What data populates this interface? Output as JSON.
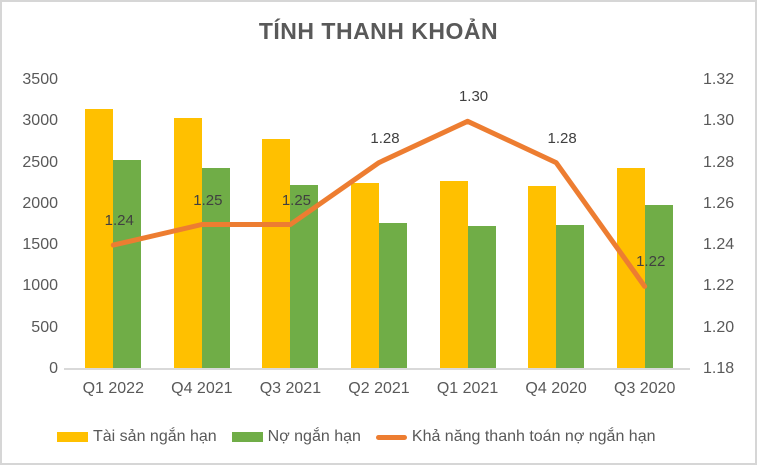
{
  "title": "TÍNH THANH KHOẢN",
  "chart_data": {
    "type": "combo-bar-line",
    "title": "TÍNH THANH KHOẢN",
    "categories": [
      "Q1 2022",
      "Q4 2021",
      "Q3 2021",
      "Q2 2021",
      "Q1 2021",
      "Q4 2020",
      "Q3 2020"
    ],
    "series": [
      {
        "name": "Tài sản ngắn hạn",
        "type": "bar",
        "axis": "left",
        "color": "#FFC000",
        "values": [
          3150,
          3040,
          2790,
          2250,
          2280,
          2220,
          2430
        ]
      },
      {
        "name": "Nợ ngắn hạn",
        "type": "bar",
        "axis": "left",
        "color": "#70AD47",
        "values": [
          2530,
          2430,
          2230,
          1770,
          1730,
          1740,
          1990
        ]
      },
      {
        "name": "Khả năng thanh toán nợ ngắn hạn",
        "type": "line",
        "axis": "right",
        "color": "#ED7D31",
        "values": [
          1.24,
          1.25,
          1.25,
          1.28,
          1.3,
          1.28,
          1.22
        ],
        "data_labels": [
          "1.24",
          "1.25",
          "1.25",
          "1.28",
          "1.30",
          "1.28",
          "1.22"
        ]
      }
    ],
    "left_axis": {
      "min": 0,
      "max": 3500,
      "step": 500,
      "ticks": [
        "0",
        "500",
        "1000",
        "1500",
        "2000",
        "2500",
        "3000",
        "3500"
      ]
    },
    "right_axis": {
      "min": 1.18,
      "max": 1.32,
      "step": 0.02,
      "ticks": [
        "1.18",
        "1.20",
        "1.22",
        "1.24",
        "1.26",
        "1.28",
        "1.30",
        "1.32"
      ]
    },
    "grid": false,
    "legend_position": "bottom"
  },
  "legend": {
    "items": [
      {
        "label": "Tài sản ngắn hạn",
        "color": "#FFC000",
        "marker": "square"
      },
      {
        "label": "Nợ ngắn hạn",
        "color": "#70AD47",
        "marker": "square"
      },
      {
        "label": "Khả năng thanh toán nợ ngắn hạn",
        "color": "#ED7D31",
        "marker": "line"
      }
    ]
  },
  "colors": {
    "assets_bar": "#FFC000",
    "liabilities_bar": "#70AD47",
    "ratio_line": "#ED7D31",
    "title_text": "#595959",
    "axis_text": "#595959",
    "data_label_text": "#404040",
    "axis_line": "#D9D9D9",
    "border": "#D6D6D6"
  }
}
